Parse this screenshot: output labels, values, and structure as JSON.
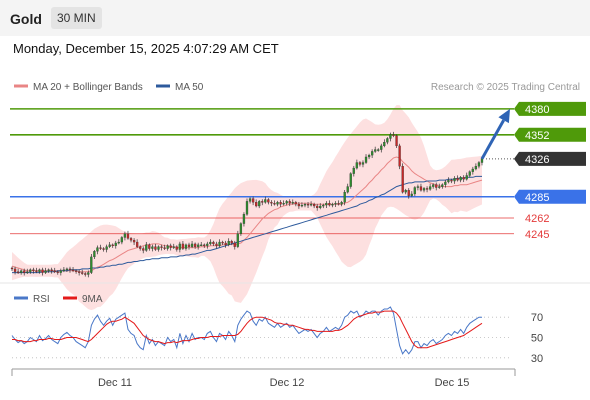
{
  "header": {
    "title": "Gold",
    "timeframe": "30 MIN",
    "timestamp": "Monday, December 15, 2025 4:07:29 AM CET"
  },
  "colors": {
    "green": "#4f9a0a",
    "blue": "#3a72e8",
    "red": "#e43a3a",
    "dark": "#333333",
    "ma20": "#e98585",
    "ma50": "#2d5a9c",
    "band": "#fde0e0",
    "candle_up": "#2e8b2e",
    "candle_down": "#c62828",
    "rsi": "#4a78c8",
    "rsi_ma": "#e41a1a"
  },
  "legend": {
    "ma20": "MA 20 + Bollinger Bands",
    "ma50": "MA 50",
    "credit": "Research © 2025 Trading Central",
    "rsi": "RSI",
    "rsi_ma": "9MA"
  },
  "chart_data": [
    {
      "type": "candlestick",
      "instrument": "Gold",
      "timeframe": "30 MIN",
      "x_ticks": [
        "Dec 11",
        "Dec 12",
        "Dec 15"
      ],
      "ylim": [
        4195,
        4395
      ],
      "levels": [
        {
          "value": 4380,
          "label": "4380",
          "color": "#4f9a0a",
          "style": "line"
        },
        {
          "value": 4352,
          "label": "4352",
          "color": "#4f9a0a",
          "style": "line"
        },
        {
          "value": 4326,
          "label": "4326",
          "color": "#333333",
          "style": "dotted"
        },
        {
          "value": 4285,
          "label": "4285",
          "color": "#3a72e8",
          "style": "line"
        },
        {
          "value": 4262,
          "label": "4262",
          "color": "#e43a3a",
          "style": "thin"
        },
        {
          "value": 4245,
          "label": "4245",
          "color": "#e43a3a",
          "style": "thin"
        }
      ],
      "close": [
        4207,
        4204,
        4203,
        4205,
        4203,
        4204,
        4206,
        4205,
        4204,
        4206,
        4203,
        4205,
        4206,
        4205,
        4204,
        4203,
        4205,
        4206,
        4207,
        4206,
        4205,
        4204,
        4203,
        4202,
        4201,
        4203,
        4220,
        4226,
        4230,
        4229,
        4228,
        4231,
        4233,
        4232,
        4235,
        4236,
        4241,
        4245,
        4240,
        4238,
        4236,
        4231,
        4229,
        4227,
        4233,
        4229,
        4231,
        4228,
        4231,
        4230,
        4229,
        4232,
        4230,
        4231,
        4228,
        4234,
        4229,
        4233,
        4231,
        4234,
        4231,
        4233,
        4233,
        4232,
        4234,
        4236,
        4234,
        4232,
        4236,
        4235,
        4233,
        4237,
        4235,
        4231,
        4245,
        4256,
        4266,
        4280,
        4283,
        4279,
        4275,
        4280,
        4279,
        4282,
        4279,
        4278,
        4277,
        4279,
        4277,
        4278,
        4280,
        4278,
        4279,
        4277,
        4275,
        4276,
        4277,
        4276,
        4277,
        4275,
        4273,
        4275,
        4276,
        4278,
        4276,
        4277,
        4278,
        4277,
        4279,
        4290,
        4296,
        4310,
        4316,
        4322,
        4320,
        4322,
        4328,
        4330,
        4334,
        4336,
        4336,
        4340,
        4344,
        4348,
        4352,
        4351,
        4340,
        4318,
        4290,
        4292,
        4286,
        4288,
        4295,
        4296,
        4292,
        4294,
        4293,
        4296,
        4298,
        4295,
        4296,
        4298,
        4301,
        4303,
        4302,
        4305,
        4303,
        4306,
        4304,
        4308,
        4312,
        4315,
        4318,
        4322,
        4326
      ],
      "ma20": [
        4210,
        4209,
        4208,
        4207,
        4206,
        4205,
        4205,
        4205,
        4205,
        4205,
        4205,
        4205,
        4205,
        4205,
        4205,
        4205,
        4205,
        4205,
        4205,
        4205,
        4205,
        4205,
        4204,
        4204,
        4204,
        4204,
        4205,
        4207,
        4209,
        4210,
        4212,
        4214,
        4216,
        4217,
        4219,
        4221,
        4223,
        4225,
        4227,
        4228,
        4229,
        4230,
        4231,
        4232,
        4233,
        4233,
        4234,
        4234,
        4234,
        4233,
        4232,
        4232,
        4231,
        4231,
        4230,
        4230,
        4230,
        4230,
        4230,
        4230,
        4230,
        4230,
        4231,
        4231,
        4231,
        4232,
        4232,
        4232,
        4232,
        4233,
        4233,
        4233,
        4234,
        4233,
        4234,
        4235,
        4238,
        4241,
        4245,
        4249,
        4253,
        4257,
        4261,
        4264,
        4267,
        4269,
        4271,
        4272,
        4274,
        4275,
        4276,
        4277,
        4277,
        4278,
        4278,
        4278,
        4278,
        4278,
        4278,
        4277,
        4277,
        4277,
        4277,
        4277,
        4277,
        4277,
        4277,
        4277,
        4277,
        4278,
        4279,
        4281,
        4284,
        4287,
        4290,
        4293,
        4296,
        4300,
        4303,
        4307,
        4310,
        4314,
        4317,
        4321,
        4324,
        4327,
        4328,
        4327,
        4323,
        4320,
        4317,
        4313,
        4310,
        4308,
        4306,
        4304,
        4302,
        4300,
        4299,
        4298,
        4297,
        4296,
        4296,
        4296,
        4296,
        4297,
        4297,
        4298,
        4298,
        4298,
        4299,
        4300,
        4301,
        4302,
        4303
      ],
      "ma50": [
        4203,
        4203,
        4203,
        4203,
        4203,
        4203,
        4203,
        4203,
        4203,
        4203,
        4204,
        4204,
        4204,
        4204,
        4204,
        4205,
        4205,
        4205,
        4205,
        4206,
        4206,
        4206,
        4206,
        4207,
        4207,
        4207,
        4208,
        4208,
        4208,
        4209,
        4209,
        4210,
        4210,
        4211,
        4211,
        4212,
        4212,
        4213,
        4214,
        4214,
        4215,
        4215,
        4216,
        4216,
        4217,
        4217,
        4218,
        4218,
        4218,
        4219,
        4219,
        4219,
        4220,
        4220,
        4220,
        4221,
        4221,
        4222,
        4222,
        4223,
        4223,
        4224,
        4225,
        4226,
        4227,
        4227,
        4228,
        4229,
        4230,
        4231,
        4232,
        4233,
        4234,
        4235,
        4236,
        4237,
        4238,
        4239,
        4240,
        4241,
        4242,
        4243,
        4244,
        4245,
        4246,
        4247,
        4248,
        4249,
        4250,
        4251,
        4252,
        4253,
        4254,
        4255,
        4256,
        4257,
        4258,
        4259,
        4260,
        4261,
        4262,
        4263,
        4264,
        4265,
        4266,
        4267,
        4268,
        4269,
        4270,
        4271,
        4272,
        4273,
        4274,
        4275,
        4277,
        4278,
        4279,
        4281,
        4282,
        4284,
        4285,
        4287,
        4288,
        4290,
        4292,
        4294,
        4296,
        4297,
        4298,
        4299,
        4300,
        4300,
        4301,
        4301,
        4301,
        4301,
        4302,
        4302,
        4302,
        4302,
        4303,
        4303,
        4303,
        4304,
        4304,
        4304,
        4305,
        4305,
        4305,
        4306,
        4306,
        4306,
        4307,
        4307,
        4307
      ]
    },
    {
      "type": "line",
      "name": "RSI",
      "ylim": [
        20,
        80
      ],
      "y_ticks": [
        70,
        50,
        30
      ],
      "series": [
        {
          "name": "RSI",
          "values": [
            52,
            48,
            45,
            47,
            44,
            46,
            50,
            48,
            46,
            52,
            47,
            49,
            52,
            48,
            46,
            44,
            50,
            53,
            55,
            52,
            50,
            46,
            44,
            42,
            40,
            46,
            62,
            68,
            72,
            66,
            62,
            66,
            69,
            62,
            68,
            70,
            72,
            74,
            58,
            54,
            52,
            44,
            40,
            38,
            52,
            44,
            48,
            42,
            46,
            44,
            42,
            50,
            46,
            48,
            40,
            54,
            44,
            52,
            46,
            54,
            48,
            50,
            50,
            48,
            54,
            56,
            50,
            46,
            54,
            52,
            48,
            56,
            52,
            46,
            62,
            68,
            72,
            76,
            74,
            66,
            62,
            68,
            66,
            70,
            64,
            62,
            60,
            64,
            60,
            62,
            64,
            60,
            62,
            58,
            54,
            56,
            58,
            56,
            58,
            54,
            50,
            54,
            56,
            60,
            56,
            58,
            60,
            58,
            62,
            70,
            72,
            76,
            74,
            76,
            70,
            72,
            76,
            74,
            76,
            76,
            72,
            76,
            78,
            78,
            80,
            74,
            58,
            42,
            34,
            38,
            34,
            38,
            46,
            46,
            40,
            44,
            42,
            46,
            48,
            44,
            46,
            48,
            52,
            54,
            52,
            56,
            54,
            58,
            54,
            60,
            64,
            66,
            68,
            70,
            70
          ]
        },
        {
          "name": "9MA",
          "values": [
            48,
            48,
            47,
            47,
            46,
            46,
            46,
            47,
            47,
            48,
            48,
            48,
            49,
            49,
            48,
            48,
            48,
            49,
            50,
            50,
            50,
            50,
            49,
            48,
            47,
            46,
            48,
            51,
            54,
            57,
            60,
            63,
            65,
            66,
            66,
            67,
            68,
            70,
            68,
            66,
            64,
            60,
            56,
            52,
            50,
            48,
            47,
            46,
            46,
            45,
            44,
            45,
            45,
            46,
            45,
            46,
            47,
            47,
            47,
            48,
            49,
            49,
            50,
            50,
            50,
            51,
            51,
            51,
            51,
            52,
            52,
            52,
            52,
            52,
            53,
            56,
            60,
            64,
            67,
            69,
            70,
            70,
            70,
            69,
            68,
            67,
            65,
            64,
            64,
            63,
            63,
            62,
            62,
            61,
            60,
            59,
            58,
            58,
            57,
            57,
            56,
            56,
            56,
            56,
            56,
            56,
            57,
            57,
            58,
            60,
            62,
            65,
            68,
            70,
            71,
            72,
            73,
            74,
            74,
            75,
            75,
            75,
            76,
            76,
            76,
            76,
            74,
            70,
            64,
            58,
            52,
            46,
            42,
            40,
            40,
            40,
            40,
            41,
            42,
            43,
            44,
            45,
            46,
            47,
            48,
            49,
            50,
            51,
            52,
            54,
            56,
            58,
            60,
            62,
            64
          ]
        }
      ]
    }
  ]
}
